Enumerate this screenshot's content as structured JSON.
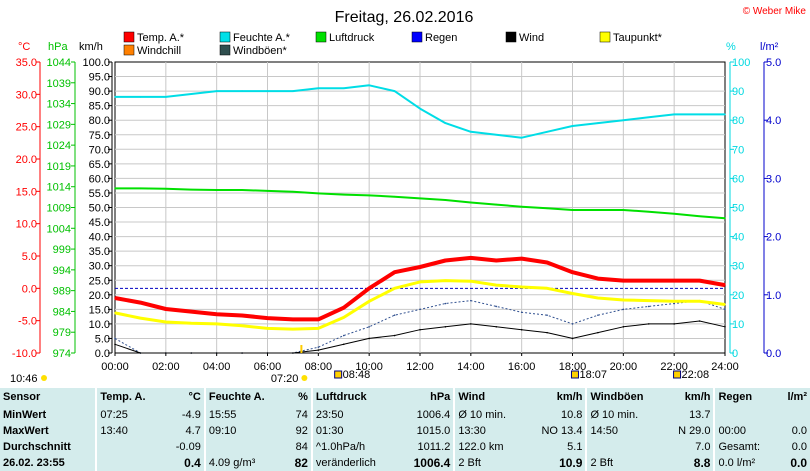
{
  "chart_data": {
    "type": "line",
    "title": "Freitag, 26.02.2016",
    "copyright": "© Weber Mike",
    "x_ticks": [
      "00:00",
      "02:00",
      "04:00",
      "06:00",
      "08:00",
      "10:00",
      "12:00",
      "14:00",
      "16:00",
      "18:00",
      "20:00",
      "22:00",
      "24:00"
    ],
    "axes": {
      "temp_c": {
        "label": "°C",
        "range": [
          -10,
          35
        ],
        "ticks": [
          "-10.0",
          "-5.0",
          "0.0",
          "5.0",
          "10.0",
          "15.0",
          "20.0",
          "25.0",
          "30.0",
          "35.0"
        ],
        "color": "#ff0000"
      },
      "pressure_hpa": {
        "label": "hPa",
        "range": [
          974,
          1044
        ],
        "ticks": [
          "974",
          "979",
          "984",
          "989",
          "994",
          "999",
          "1004",
          "1009",
          "1014",
          "1019",
          "1024",
          "1029",
          "1034",
          "1039",
          "1044"
        ],
        "color": "#00c000"
      },
      "wind_kmh": {
        "label": "km/h",
        "range": [
          0,
          100
        ],
        "ticks": [
          "0.0",
          "5.0",
          "10.0",
          "15.0",
          "20.0",
          "25.0",
          "30.0",
          "35.0",
          "40.0",
          "45.0",
          "50.0",
          "55.0",
          "60.0",
          "65.0",
          "70.0",
          "75.0",
          "80.0",
          "85.0",
          "90.0",
          "95.0",
          "100.0"
        ],
        "color": "#000000"
      },
      "humidity_pct": {
        "label": "%",
        "range": [
          0,
          100
        ],
        "ticks": [
          "0",
          "10",
          "20",
          "30",
          "40",
          "50",
          "60",
          "70",
          "80",
          "90",
          "100"
        ],
        "color": "#00d8e0"
      },
      "rain_lm2": {
        "label": "l/m²",
        "range": [
          0,
          5
        ],
        "ticks": [
          "0.0",
          "1.0",
          "2.0",
          "3.0",
          "4.0",
          "5.0"
        ],
        "color": "#0000cc"
      }
    },
    "legend": [
      {
        "name": "Temp. A.*",
        "color": "#ff0000"
      },
      {
        "name": "Feuchte A.*",
        "color": "#00e0e8"
      },
      {
        "name": "Luftdruck",
        "color": "#00e000"
      },
      {
        "name": "Regen",
        "color": "#0000ff"
      },
      {
        "name": "Wind",
        "color": "#000000"
      },
      {
        "name": "Taupunkt*",
        "color": "#ffff00"
      },
      {
        "name": "Windchill",
        "color": "#ff8000"
      },
      {
        "name": "Windböen*",
        "color": "#2f4f4f"
      }
    ],
    "series": [
      {
        "name": "Temp. A.*",
        "axis": "temp_c",
        "x": [
          0,
          1,
          2,
          3,
          4,
          5,
          6,
          7,
          8,
          9,
          10,
          11,
          12,
          13,
          14,
          15,
          16,
          17,
          18,
          19,
          20,
          21,
          22,
          23,
          24
        ],
        "values": [
          -1.5,
          -2.2,
          -3.2,
          -3.6,
          -4.0,
          -4.2,
          -4.6,
          -4.8,
          -4.8,
          -3.0,
          0.0,
          2.5,
          3.3,
          4.3,
          4.7,
          4.3,
          4.6,
          4.0,
          2.5,
          1.5,
          1.2,
          1.2,
          1.2,
          1.2,
          0.5
        ]
      },
      {
        "name": "Taupunkt*",
        "axis": "temp_c",
        "x": [
          0,
          1,
          2,
          3,
          4,
          5,
          6,
          7,
          8,
          9,
          10,
          11,
          12,
          13,
          14,
          15,
          16,
          17,
          18,
          19,
          20,
          21,
          22,
          23,
          24
        ],
        "values": [
          -3.8,
          -4.6,
          -5.2,
          -5.4,
          -5.5,
          -5.8,
          -6.2,
          -6.3,
          -6.2,
          -4.5,
          -2.0,
          0.0,
          1.0,
          1.2,
          1.1,
          0.5,
          0.2,
          0.0,
          -0.8,
          -1.5,
          -1.8,
          -1.9,
          -2.0,
          -2.0,
          -2.5
        ]
      },
      {
        "name": "Feuchte A.*",
        "axis": "humidity_pct",
        "x": [
          0,
          1,
          2,
          3,
          4,
          5,
          6,
          7,
          8,
          9,
          10,
          11,
          12,
          13,
          14,
          15,
          16,
          17,
          18,
          19,
          20,
          21,
          22,
          23,
          24
        ],
        "values": [
          88,
          88,
          88,
          89,
          90,
          90,
          90,
          90,
          91,
          91,
          92,
          90,
          84,
          79,
          76,
          75,
          74,
          76,
          78,
          79,
          80,
          81,
          82,
          82,
          82
        ]
      },
      {
        "name": "Luftdruck",
        "axis": "pressure_hpa",
        "x": [
          0,
          1,
          2,
          3,
          4,
          5,
          6,
          7,
          8,
          9,
          10,
          11,
          12,
          13,
          14,
          15,
          16,
          17,
          18,
          19,
          20,
          21,
          22,
          23,
          24
        ],
        "values": [
          1013.6,
          1013.6,
          1013.5,
          1013.3,
          1013.2,
          1013.2,
          1013.0,
          1012.8,
          1012.4,
          1012.1,
          1011.9,
          1011.6,
          1011.2,
          1010.8,
          1010.2,
          1009.7,
          1009.2,
          1008.8,
          1008.4,
          1008.4,
          1008.4,
          1008.0,
          1007.5,
          1006.9,
          1006.4
        ]
      },
      {
        "name": "Wind",
        "axis": "wind_kmh",
        "x": [
          0,
          1,
          2,
          3,
          4,
          5,
          6,
          7,
          8,
          9,
          10,
          11,
          12,
          13,
          14,
          15,
          16,
          17,
          18,
          19,
          20,
          21,
          22,
          23,
          24
        ],
        "values": [
          3,
          0,
          0,
          0,
          0,
          0,
          0,
          0,
          1,
          3,
          5,
          6,
          8,
          9,
          10,
          9,
          8,
          7,
          5,
          7,
          9,
          10,
          10,
          11,
          9
        ]
      },
      {
        "name": "Windböen*",
        "axis": "wind_kmh",
        "x": [
          0,
          1,
          2,
          3,
          4,
          5,
          6,
          7,
          8,
          9,
          10,
          11,
          12,
          13,
          14,
          15,
          16,
          17,
          18,
          19,
          20,
          21,
          22,
          23,
          24
        ],
        "values": [
          5,
          0,
          0,
          0,
          0,
          0,
          0,
          0,
          2,
          6,
          9,
          13,
          15,
          17,
          18,
          16,
          14,
          13,
          10,
          13,
          15,
          16,
          17,
          18,
          15
        ]
      }
    ],
    "bottom_markers": {
      "left_label": "10:46",
      "row1": [
        "07:20"
      ],
      "row2": [
        "08:48",
        "18:07",
        "22:08"
      ]
    }
  },
  "stats": {
    "headers": {
      "sensor": "Sensor",
      "temp": "Temp. A.",
      "temp_unit": "°C",
      "hum": "Feuchte A.",
      "hum_unit": "%",
      "press": "Luftdruck",
      "press_unit": "hPa",
      "wind": "Wind",
      "wind_unit": "km/h",
      "gust": "Windböen",
      "gust_unit": "km/h",
      "rain": "Regen",
      "rain_unit": "l/m²"
    },
    "min": {
      "label": "MinWert",
      "temp_t": "07:25",
      "temp_v": "-4.9",
      "hum_t": "15:55",
      "hum_v": "74",
      "press_t": "23:50",
      "press_v": "1006.4",
      "wind_t": "Ø 10 min.",
      "wind_v": "10.8",
      "gust_t": "Ø 10 min.",
      "gust_v": "13.7",
      "rain_t": "",
      "rain_v": ""
    },
    "max": {
      "label": "MaxWert",
      "temp_t": "13:40",
      "temp_v": "4.7",
      "hum_t": "09:10",
      "hum_v": "92",
      "press_t": "01:30",
      "press_v": "1015.0",
      "wind_t": "13:30",
      "wind_d": "NO 13.4",
      "gust_t": "14:50",
      "gust_d": "N 29.0",
      "rain_t": "00:00",
      "rain_v": "0.0"
    },
    "avg": {
      "label": "Durchschnitt",
      "temp_v": "-0.09",
      "hum_v": "84",
      "press_t": "^1.0hPa/h",
      "press_v": "1011.2",
      "wind_t": "122.0 km",
      "wind_v": "5.1",
      "gust_v": "7.0",
      "rain_t": "Gesamt:",
      "rain_v": "0.0"
    },
    "cur": {
      "label": "26.02. 23:55",
      "temp_v": "0.4",
      "hum_t": "4.09 g/m³",
      "hum_v": "82",
      "press_t": "veränderlich",
      "press_v": "1006.4",
      "wind_t": "2 Bft",
      "wind_v": "10.9",
      "gust_t": "2 Bft",
      "gust_v": "8.8",
      "rain_t": "0.0 l/m²",
      "rain_v": "0.0"
    }
  }
}
